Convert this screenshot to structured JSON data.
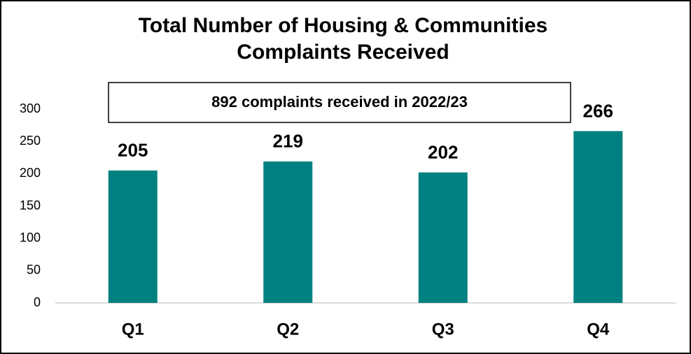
{
  "chart_data": {
    "type": "bar",
    "title": "Total Number of Housing & Communities Complaints Received",
    "annotation": "892 complaints received in 2022/23",
    "categories": [
      "Q1",
      "Q2",
      "Q3",
      "Q4"
    ],
    "values": [
      205,
      219,
      202,
      266
    ],
    "color": "#008080",
    "ylim": [
      0,
      300
    ],
    "yticks": [
      0,
      50,
      100,
      150,
      200,
      250,
      300
    ],
    "grid": false
  }
}
